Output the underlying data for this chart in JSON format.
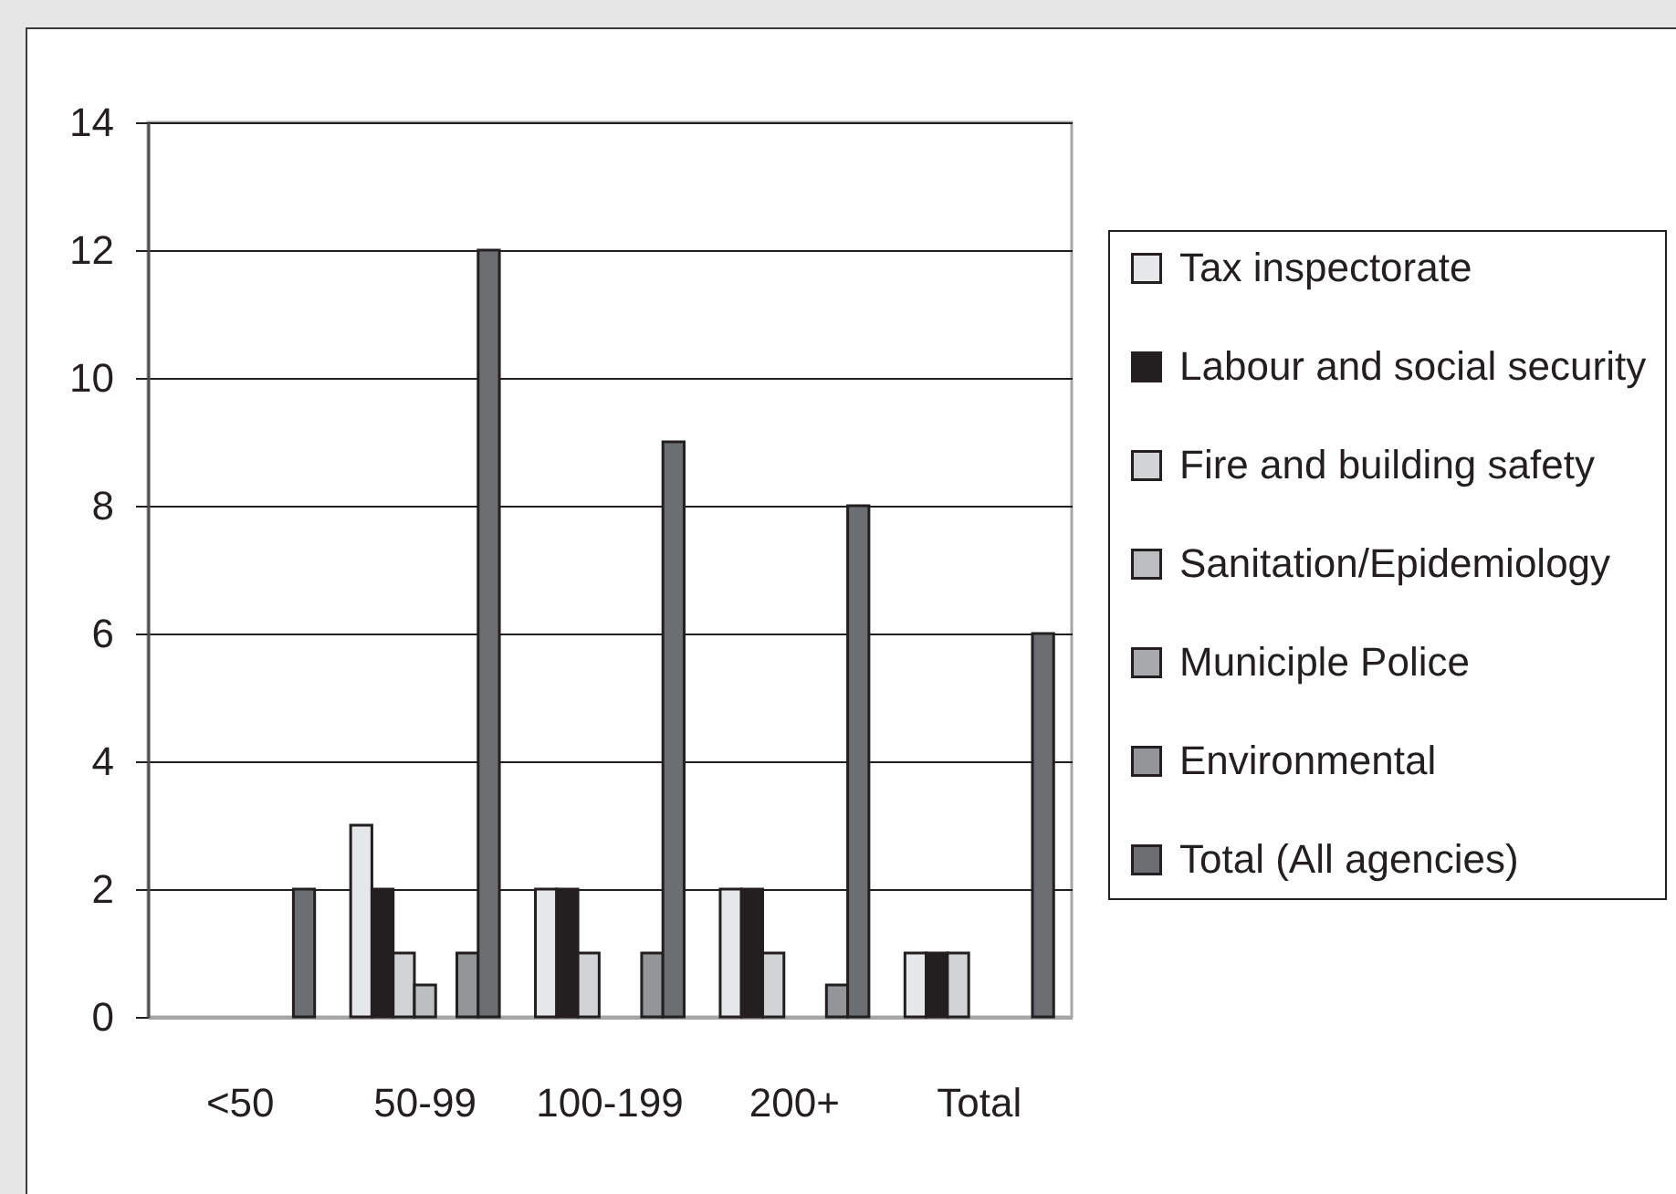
{
  "chart_data": {
    "type": "bar",
    "categories": [
      "<50",
      "50-99",
      "100-199",
      "200+",
      "Total"
    ],
    "series": [
      {
        "name": "Tax inspectorate",
        "color": "#e6e7e8",
        "values": [
          null,
          3,
          2,
          2,
          1
        ]
      },
      {
        "name": "Labour and social security",
        "color": "#231f20",
        "values": [
          null,
          2,
          2,
          2,
          1
        ]
      },
      {
        "name": "Fire and building safety",
        "color": "#d1d3d4",
        "values": [
          null,
          1,
          1,
          1,
          1
        ]
      },
      {
        "name": "Sanitation/Epidemiology",
        "color": "#bcbec0",
        "values": [
          null,
          0.5,
          null,
          null,
          null
        ]
      },
      {
        "name": "Municiple Police",
        "color": "#a7a9ac",
        "values": [
          null,
          null,
          null,
          null,
          null
        ]
      },
      {
        "name": "Environmental",
        "color": "#939598",
        "values": [
          null,
          1,
          1,
          0.5,
          null
        ]
      },
      {
        "name": "Total (All agencies)",
        "color": "#6d6e71",
        "values": [
          2,
          12,
          9,
          8,
          6
        ]
      }
    ],
    "ylim": [
      0,
      14
    ],
    "yticks": [
      0,
      2,
      4,
      6,
      8,
      10,
      12,
      14
    ],
    "grid": "y",
    "legend": "right"
  }
}
